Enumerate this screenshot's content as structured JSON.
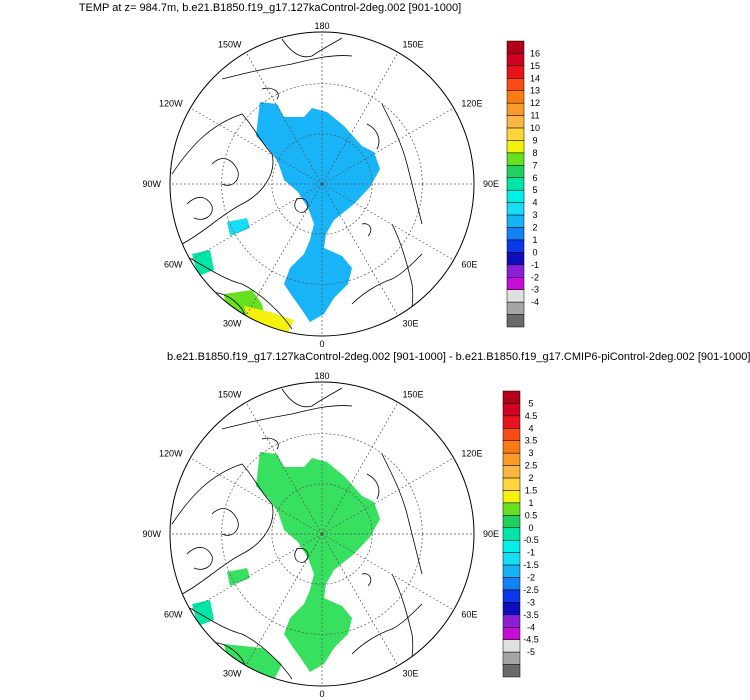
{
  "panels": [
    {
      "title": "TEMP at z= 984.7m, b.e21.B1850.f19_g17.127kaControl-2deg.002 [901-1000]",
      "lon_labels": [
        "180",
        "150E",
        "120E",
        "90E",
        "60E",
        "30E",
        "0",
        "30W",
        "60W",
        "90W",
        "120W",
        "150W"
      ],
      "colorbar": {
        "labels": [
          "16",
          "15",
          "14",
          "13",
          "12",
          "11",
          "10",
          "9",
          "8",
          "7",
          "6",
          "5",
          "4",
          "3",
          "2",
          "1",
          "0",
          "-1",
          "-2",
          "-3",
          "-4"
        ],
        "colors": [
          "#b2001b",
          "#d10022",
          "#e8141c",
          "#f84c16",
          "#f97c10",
          "#fb9a28",
          "#fbb541",
          "#fdd63e",
          "#f4f20c",
          "#66e020",
          "#22d060",
          "#00e6a6",
          "#00f0e8",
          "#18ddf7",
          "#14b4f7",
          "#1482f7",
          "#0a38e8",
          "#0d0dbd",
          "#8a20d6",
          "#c40ed6",
          "#e0e0e0",
          "#a5a5a5",
          "#6a6a6a"
        ]
      },
      "field_color": "#18b4f7",
      "extra_colors": [
        "#18ddf7",
        "#66e020",
        "#f4f20c",
        "#00e6a6"
      ]
    },
    {
      "title": "b.e21.B1850.f19_g17.127kaControl-2deg.002 [901-1000] - b.e21.B1850.f19_g17.CMIP6-piControl-2deg.002 [901-1000]",
      "lon_labels": [
        "180",
        "150E",
        "120E",
        "90E",
        "60E",
        "30E",
        "0",
        "30W",
        "60W",
        "90W",
        "120W",
        "150W"
      ],
      "colorbar": {
        "labels": [
          "5",
          "4.5",
          "4",
          "3.5",
          "3",
          "2.5",
          "2",
          "1.5",
          "1",
          "0.5",
          "0",
          "-0.5",
          "-1",
          "-1.5",
          "-2",
          "-2.5",
          "-3",
          "-3.5",
          "-4",
          "-4.5",
          "-5"
        ],
        "colors": [
          "#b2001b",
          "#d10022",
          "#e8141c",
          "#f84c16",
          "#f97c10",
          "#fb9a28",
          "#fbb541",
          "#fdd63e",
          "#f4f20c",
          "#66e020",
          "#22d060",
          "#00e6a6",
          "#00f0e8",
          "#18ddf7",
          "#14b4f7",
          "#1482f7",
          "#0a38e8",
          "#0d0dbd",
          "#8a20d6",
          "#c40ed6",
          "#e0e0e0",
          "#a5a5a5",
          "#6a6a6a"
        ]
      },
      "field_color": "#38e060",
      "extra_colors": [
        "#00e6a6",
        "#38e060"
      ]
    }
  ]
}
